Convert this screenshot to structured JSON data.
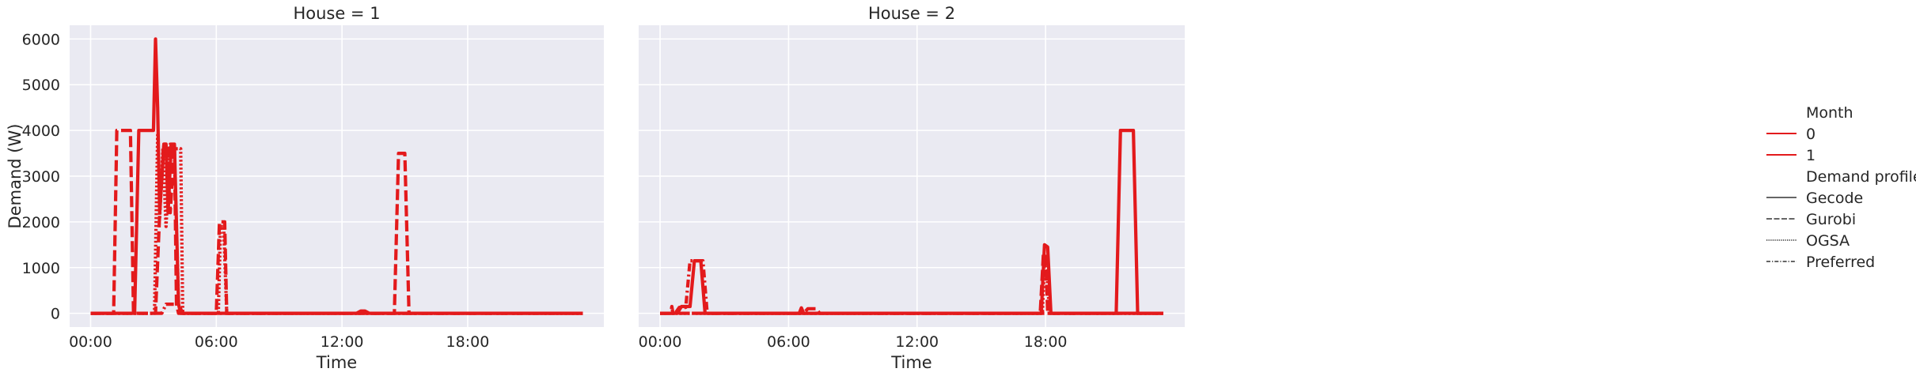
{
  "chart_data": {
    "type": "line",
    "ylabel": "Demand (W)",
    "xlabel": "Time",
    "x_ticks": [
      "00:00",
      "06:00",
      "12:00",
      "18:00"
    ],
    "y_ticks": [
      0,
      1000,
      2000,
      3000,
      4000,
      5000,
      6000
    ],
    "xlim_hours": [
      -1,
      24.5
    ],
    "ylim": [
      -300,
      6300
    ],
    "grid": true,
    "legend_placement": "right",
    "line_color": "#e31a1c",
    "legend": {
      "hue_title": "Month",
      "hue_entries": [
        "0",
        "1"
      ],
      "style_title": "Demand profile",
      "style_entries": [
        "Gecode",
        "Gurobi",
        "OGSA",
        "Preferred"
      ]
    },
    "panels": [
      {
        "title": "House = 1",
        "series": [
          {
            "style": "Gecode",
            "x": [
              0,
              2.1,
              2.3,
              3.0,
              3.1,
              3.2,
              3.3,
              3.5,
              3.6,
              3.7,
              3.85,
              4.0,
              4.2,
              4.3,
              12.7,
              12.9,
              13.1,
              13.3,
              23.5
            ],
            "y": [
              0,
              0,
              4000,
              4000,
              6000,
              4500,
              2200,
              3700,
              3700,
              2200,
              3700,
              3700,
              200,
              0,
              0,
              50,
              50,
              0,
              0
            ]
          },
          {
            "style": "Gurobi",
            "x": [
              0,
              1.1,
              1.25,
              1.9,
              2.05,
              2.1,
              3.1,
              3.3,
              3.5,
              3.7,
              3.8,
              4.0,
              4.1,
              4.2,
              6.0,
              6.15,
              6.4,
              6.5,
              14.5,
              14.7,
              15.0,
              15.2,
              23.5
            ],
            "y": [
              0,
              0,
              4000,
              4000,
              0,
              0,
              0,
              2200,
              3700,
              3700,
              2200,
              3700,
              200,
              0,
              0,
              2000,
              2000,
              0,
              0,
              3500,
              3500,
              0,
              0
            ]
          },
          {
            "style": "OGSA",
            "x": [
              0,
              3.05,
              3.2,
              3.3,
              3.45,
              3.6,
              3.8,
              4.0,
              4.3,
              4.4,
              6.1,
              6.2,
              6.35,
              6.5,
              23.5
            ],
            "y": [
              0,
              0,
              3900,
              2100,
              3600,
              1900,
              3700,
              3600,
              3600,
              0,
              0,
              1900,
              1900,
              0,
              0
            ]
          },
          {
            "style": "Preferred",
            "x": [
              0,
              3.4,
              3.6,
              4.0,
              4.2,
              4.4,
              23.5
            ],
            "y": [
              0,
              0,
              200,
              200,
              200,
              0,
              0
            ]
          }
        ]
      },
      {
        "title": "House = 2",
        "series": [
          {
            "style": "Gecode",
            "x": [
              0,
              0.8,
              1.0,
              1.4,
              1.6,
              1.9,
              2.1,
              17.8,
              17.95,
              18.1,
              18.25,
              21.3,
              21.5,
              22.1,
              22.3,
              23.5
            ],
            "y": [
              0,
              0,
              150,
              150,
              1150,
              1150,
              0,
              0,
              1500,
              1450,
              0,
              0,
              4000,
              4000,
              0,
              0
            ]
          },
          {
            "style": "Gurobi",
            "x": [
              0,
              0.5,
              0.55,
              0.6,
              6.5,
              6.6,
              6.7,
              6.9,
              7.3,
              7.45,
              17.75,
              17.9,
              18.0,
              18.1,
              23.5
            ],
            "y": [
              0,
              0,
              150,
              0,
              0,
              120,
              0,
              100,
              100,
              0,
              0,
              1300,
              1300,
              0,
              0
            ]
          },
          {
            "style": "OGSA",
            "x": [
              0,
              17.85,
              17.95,
              18.05,
              18.2,
              23.5
            ],
            "y": [
              0,
              0,
              1100,
              900,
              0,
              0
            ]
          },
          {
            "style": "Preferred",
            "x": [
              0,
              0.7,
              0.9,
              1.2,
              1.4,
              2.0,
              2.2,
              23.5
            ],
            "y": [
              0,
              0,
              130,
              130,
              1150,
              1150,
              0,
              0
            ]
          }
        ]
      }
    ]
  }
}
